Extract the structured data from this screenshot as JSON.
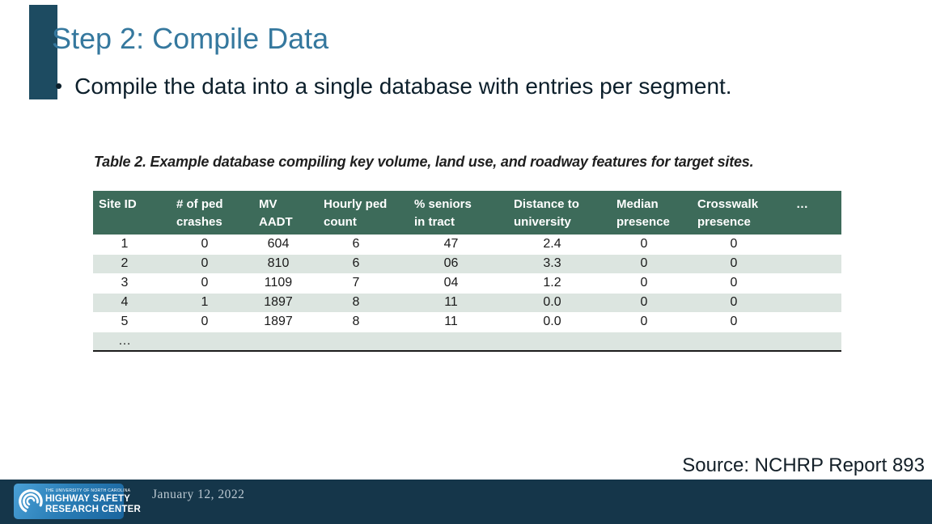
{
  "slide": {
    "title": "Step 2: Compile Data",
    "bullet_glyph": "•",
    "bullet_text": "Compile the data into a single database with entries per segment.",
    "source_note": "Source: NCHRP Report 893",
    "date": "January 12, 2022"
  },
  "figure": {
    "caption": "Table 2. Example database compiling key volume, land use, and roadway features for target sites.",
    "table": {
      "columns": [
        "Site ID",
        "# of ped\ncrashes",
        "MV\nAADT",
        "Hourly ped\ncount",
        "% seniors\nin tract",
        "Distance to\nuniversity",
        "Median\npresence",
        "Crosswalk\npresence",
        "…"
      ],
      "rows": [
        [
          "1",
          "0",
          "604",
          "6",
          "47",
          "2.4",
          "0",
          "0",
          ""
        ],
        [
          "2",
          "0",
          "810",
          "6",
          "06",
          "3.3",
          "0",
          "0",
          ""
        ],
        [
          "3",
          "0",
          "1109",
          "7",
          "04",
          "1.2",
          "0",
          "0",
          ""
        ],
        [
          "4",
          "1",
          "1897",
          "8",
          "11",
          "0.0",
          "0",
          "0",
          ""
        ],
        [
          "5",
          "0",
          "1897",
          "8",
          "11",
          "0.0",
          "0",
          "0",
          ""
        ],
        [
          "…",
          "",
          "",
          "",
          "",
          "",
          "",
          "",
          ""
        ]
      ]
    }
  },
  "footer": {
    "logo": {
      "org": "THE UNIVERSITY OF NORTH CAROLINA",
      "line1": "HIGHWAY SAFETY",
      "line2": "RESEARCH CENTER"
    }
  },
  "colors": {
    "title_blue": "#35789e",
    "body_text": "#0c1f2b",
    "table_header_green": "#3d6b5a",
    "table_row_shade": "#dce5e0",
    "footer_navy": "#15364a",
    "accent_bar": "#1d4b61",
    "logo_blue": "#2b7fb8"
  }
}
